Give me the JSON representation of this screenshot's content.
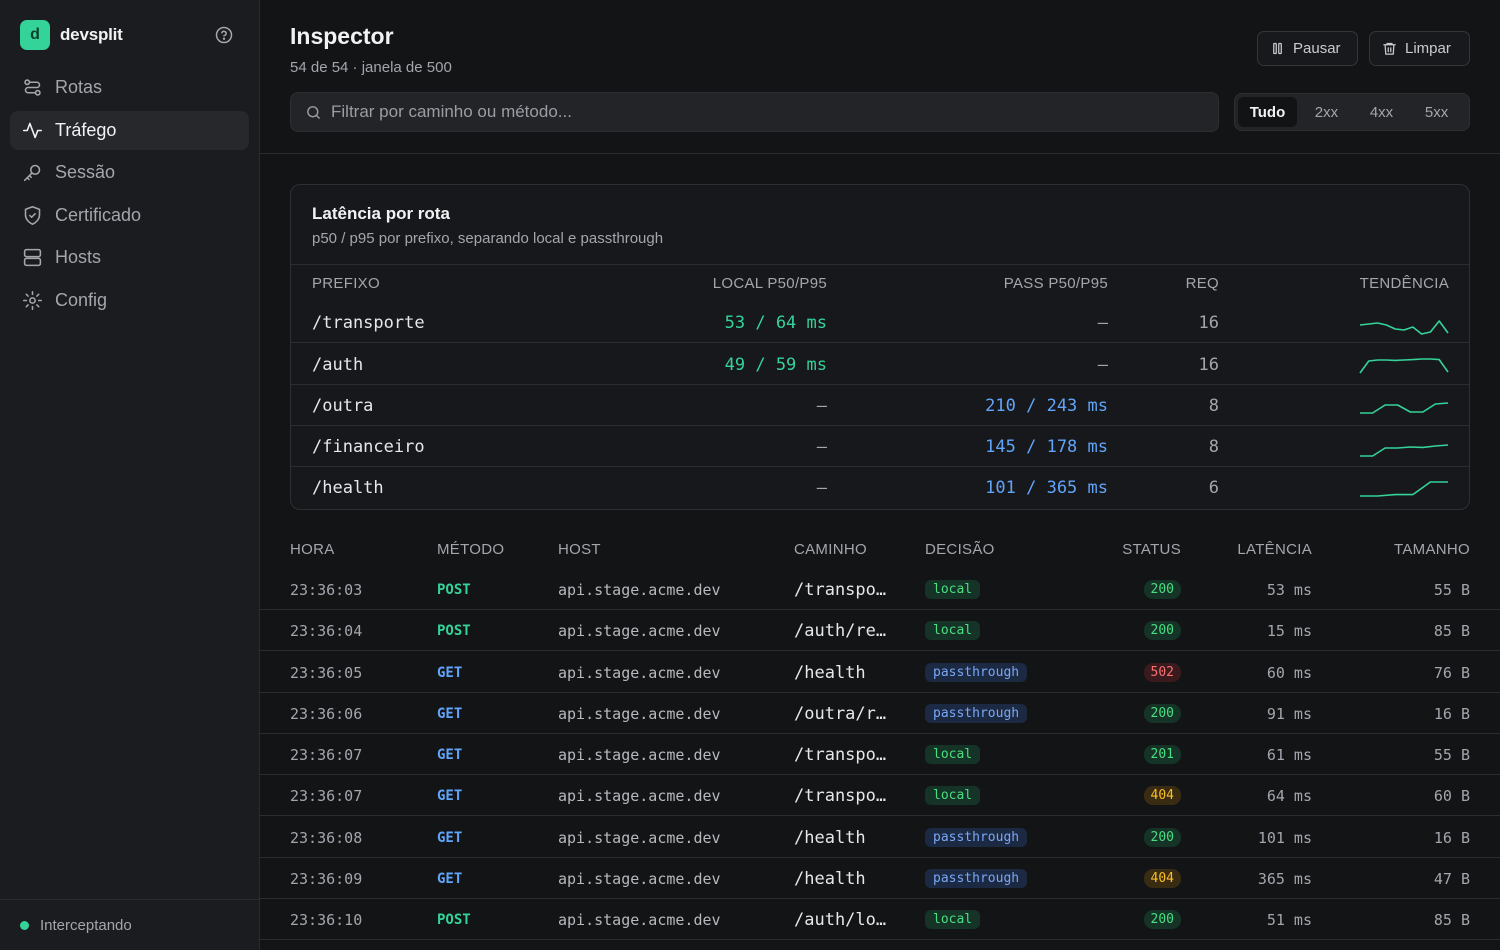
{
  "app": {
    "name": "devsplit",
    "logo_letter": "d"
  },
  "sidebar": {
    "items": [
      {
        "label": "Rotas",
        "icon": "routes-icon"
      },
      {
        "label": "Tráfego",
        "icon": "activity-icon",
        "active": true
      },
      {
        "label": "Sessão",
        "icon": "key-icon"
      },
      {
        "label": "Certificado",
        "icon": "shield-icon"
      },
      {
        "label": "Hosts",
        "icon": "server-icon"
      },
      {
        "label": "Config",
        "icon": "gear-icon"
      }
    ],
    "status": "Interceptando"
  },
  "header": {
    "title": "Inspector",
    "subtitle": "54 de 54 · janela de 500",
    "pause_label": "Pausar",
    "clear_label": "Limpar"
  },
  "search": {
    "placeholder": "Filtrar por caminho ou método..."
  },
  "filters": [
    {
      "label": "Tudo",
      "active": true
    },
    {
      "label": "2xx"
    },
    {
      "label": "4xx"
    },
    {
      "label": "5xx"
    }
  ],
  "latency_card": {
    "title": "Latência por rota",
    "subtitle": "p50 / p95 por prefixo, separando local e passthrough",
    "columns": [
      "PREFIXO",
      "LOCAL P50/P95",
      "PASS P50/P95",
      "REQ",
      "TENDÊNCIA"
    ],
    "rows": [
      {
        "prefix": "/transporte",
        "local": "53 / 64 ms",
        "pass": "—",
        "req": "16",
        "trend": [
          0.55,
          0.5,
          0.45,
          0.55,
          0.75,
          0.8,
          0.65,
          1.0,
          0.9,
          0.35,
          0.95
        ]
      },
      {
        "prefix": "/auth",
        "local": "49 / 59 ms",
        "pass": "—",
        "req": "16",
        "trend": [
          0.95,
          0.35,
          0.3,
          0.3,
          0.32,
          0.3,
          0.28,
          0.25,
          0.25,
          0.28,
          0.9
        ]
      },
      {
        "prefix": "/outra",
        "local": "—",
        "pass": "210 / 243 ms",
        "req": "8",
        "trend": [
          0.9,
          0.9,
          0.5,
          0.5,
          0.85,
          0.85,
          0.45,
          0.4
        ]
      },
      {
        "prefix": "/financeiro",
        "local": "—",
        "pass": "145 / 178 ms",
        "req": "8",
        "trend": [
          0.95,
          0.95,
          0.55,
          0.55,
          0.5,
          0.52,
          0.45,
          0.4
        ]
      },
      {
        "prefix": "/health",
        "local": "—",
        "pass": "101 / 365 ms",
        "req": "6",
        "trend": [
          0.95,
          0.95,
          0.88,
          0.88,
          0.25,
          0.25
        ]
      }
    ]
  },
  "traffic": {
    "columns": [
      "HORA",
      "MÉTODO",
      "HOST",
      "CAMINHO",
      "DECISÃO",
      "STATUS",
      "LATÊNCIA",
      "TAMANHO"
    ],
    "rows": [
      {
        "time": "23:36:03",
        "method": "POST",
        "host": "api.stage.acme.dev",
        "path": "/transpo…",
        "decision": "local",
        "status": "200",
        "latency": "53 ms",
        "size": "55 B"
      },
      {
        "time": "23:36:04",
        "method": "POST",
        "host": "api.stage.acme.dev",
        "path": "/auth/re…",
        "decision": "local",
        "status": "200",
        "latency": "15 ms",
        "size": "85 B"
      },
      {
        "time": "23:36:05",
        "method": "GET",
        "host": "api.stage.acme.dev",
        "path": "/health",
        "decision": "passthrough",
        "status": "502",
        "latency": "60 ms",
        "size": "76 B"
      },
      {
        "time": "23:36:06",
        "method": "GET",
        "host": "api.stage.acme.dev",
        "path": "/outra/r…",
        "decision": "passthrough",
        "status": "200",
        "latency": "91 ms",
        "size": "16 B"
      },
      {
        "time": "23:36:07",
        "method": "GET",
        "host": "api.stage.acme.dev",
        "path": "/transpo…",
        "decision": "local",
        "status": "201",
        "latency": "61 ms",
        "size": "55 B"
      },
      {
        "time": "23:36:07",
        "method": "GET",
        "host": "api.stage.acme.dev",
        "path": "/transpo…",
        "decision": "local",
        "status": "404",
        "latency": "64 ms",
        "size": "60 B"
      },
      {
        "time": "23:36:08",
        "method": "GET",
        "host": "api.stage.acme.dev",
        "path": "/health",
        "decision": "passthrough",
        "status": "200",
        "latency": "101 ms",
        "size": "16 B"
      },
      {
        "time": "23:36:09",
        "method": "GET",
        "host": "api.stage.acme.dev",
        "path": "/health",
        "decision": "passthrough",
        "status": "404",
        "latency": "365 ms",
        "size": "47 B"
      },
      {
        "time": "23:36:10",
        "method": "POST",
        "host": "api.stage.acme.dev",
        "path": "/auth/lo…",
        "decision": "local",
        "status": "200",
        "latency": "51 ms",
        "size": "85 B"
      }
    ]
  },
  "colors": {
    "accent": "#34d399",
    "pass": "#60a5fa",
    "error": "#f87171",
    "warning": "#fbbf24"
  }
}
